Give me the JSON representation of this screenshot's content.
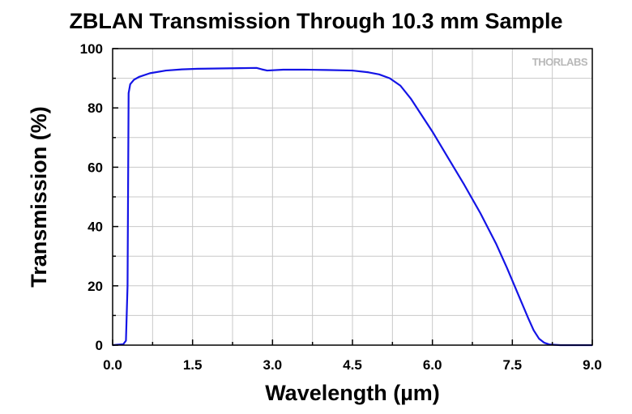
{
  "chart_data": {
    "type": "line",
    "title": "ZBLAN Transmission Through 10.3 mm Sample",
    "xlabel": "Wavelength (µm)",
    "ylabel": "Transmission (%)",
    "xlim": [
      0,
      9.0
    ],
    "ylim": [
      0,
      100
    ],
    "x_ticks": [
      "0.0",
      "1.5",
      "3.0",
      "4.5",
      "6.0",
      "7.5",
      "9.0"
    ],
    "y_ticks": [
      "0",
      "20",
      "40",
      "60",
      "80",
      "100"
    ],
    "grid": true,
    "watermark": "THORLABS",
    "line_color": "#1414e6",
    "series": [
      {
        "x": [
          0.0,
          0.2,
          0.25,
          0.28,
          0.3,
          0.33,
          0.4,
          0.5,
          0.7,
          1.0,
          1.3,
          1.6,
          2.0,
          2.4,
          2.7,
          2.8,
          2.9,
          3.2,
          3.6,
          4.0,
          4.5,
          4.8,
          5.0,
          5.2,
          5.4,
          5.6,
          5.8,
          6.0,
          6.3,
          6.6,
          6.9,
          7.2,
          7.4,
          7.6,
          7.8,
          7.9,
          8.0,
          8.1,
          8.2,
          8.4,
          9.0
        ],
        "y": [
          0,
          0.3,
          1.5,
          20,
          85,
          88,
          89.5,
          90.5,
          91.7,
          92.6,
          93.0,
          93.2,
          93.3,
          93.4,
          93.5,
          93.0,
          92.6,
          92.9,
          92.9,
          92.8,
          92.6,
          92.0,
          91.3,
          90.0,
          87.5,
          83.0,
          77.5,
          72.0,
          63.0,
          54.0,
          44.5,
          34.0,
          26.0,
          17.5,
          9.0,
          5.0,
          2.2,
          0.8,
          0.2,
          0.0,
          0.0
        ]
      }
    ]
  }
}
